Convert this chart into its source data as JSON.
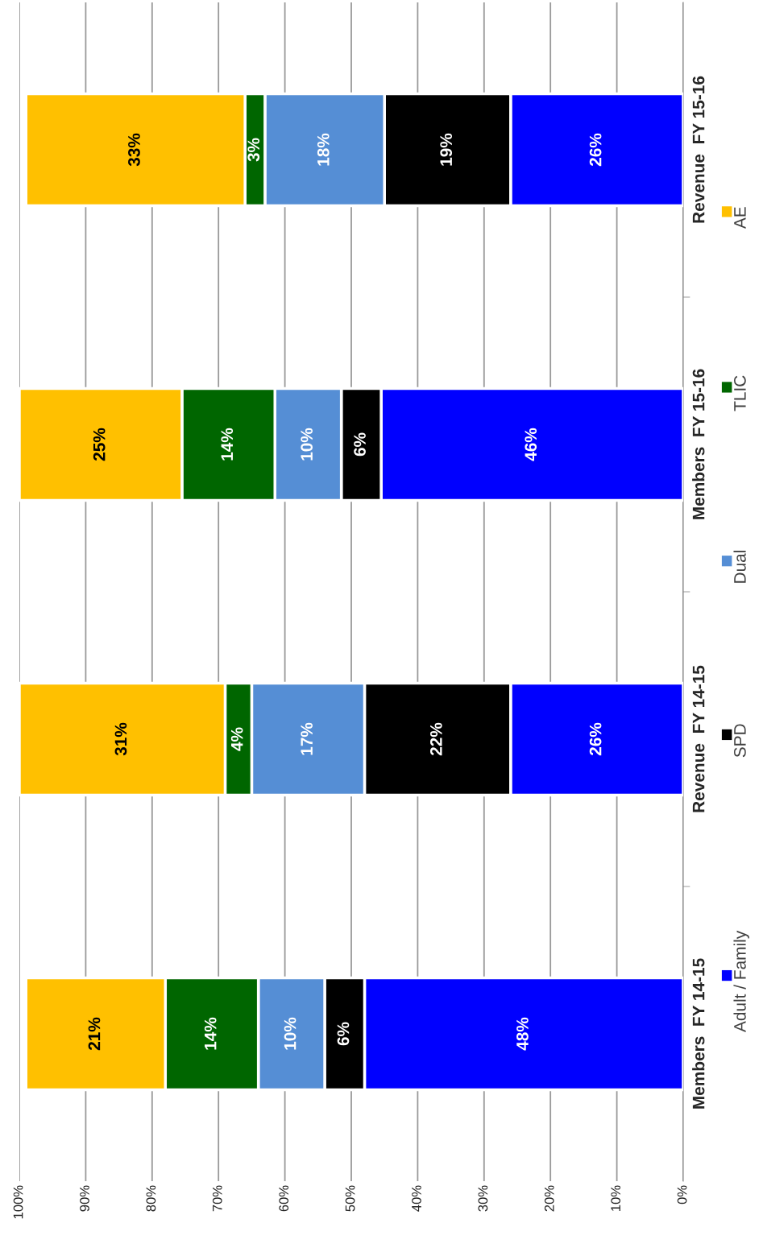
{
  "chart_data": {
    "type": "bar",
    "orientation": "horizontal",
    "stacked": true,
    "grid": "x",
    "legend": "right",
    "categories": [
      "Revenue  FY 15-16",
      "Members  FY 15-16",
      "Revenue  FY 14-15",
      "Members  FY 14-15"
    ],
    "xlim": [
      100,
      0
    ],
    "xticks": [
      {
        "value": 0,
        "label": "0%"
      },
      {
        "value": 10,
        "label": "10%"
      },
      {
        "value": 20,
        "label": "20%"
      },
      {
        "value": 30,
        "label": "30%"
      },
      {
        "value": 40,
        "label": "40%"
      },
      {
        "value": 50,
        "label": "50%"
      },
      {
        "value": 60,
        "label": "60%"
      },
      {
        "value": 70,
        "label": "70%"
      },
      {
        "value": 80,
        "label": "80%"
      },
      {
        "value": 90,
        "label": "90%"
      },
      {
        "value": 100,
        "label": "100%"
      }
    ],
    "series": [
      {
        "name": "Adult / Family",
        "color": "#0000ff",
        "values": [
          26,
          45.5,
          26,
          48
        ],
        "value_labels": [
          "26%",
          "46%",
          "26%",
          "48%"
        ]
      },
      {
        "name": "SPD",
        "color": "#000000",
        "values": [
          19,
          6,
          22,
          6
        ],
        "value_labels": [
          "19%",
          "6%",
          "22%",
          "6%"
        ]
      },
      {
        "name": "Dual",
        "color": "#558ed5",
        "values": [
          18,
          10,
          17,
          10
        ],
        "value_labels": [
          "18%",
          "10%",
          "17%",
          "10%"
        ]
      },
      {
        "name": "TLIC",
        "color": "#006600",
        "values": [
          3,
          14,
          4,
          14
        ],
        "value_labels": [
          "3%",
          "14%",
          "4%",
          "14%"
        ]
      },
      {
        "name": "AE",
        "color": "#ffc000",
        "values": [
          33,
          24.5,
          31,
          21
        ],
        "value_labels": [
          "33%",
          "25%",
          "31%",
          "21%"
        ]
      }
    ]
  }
}
